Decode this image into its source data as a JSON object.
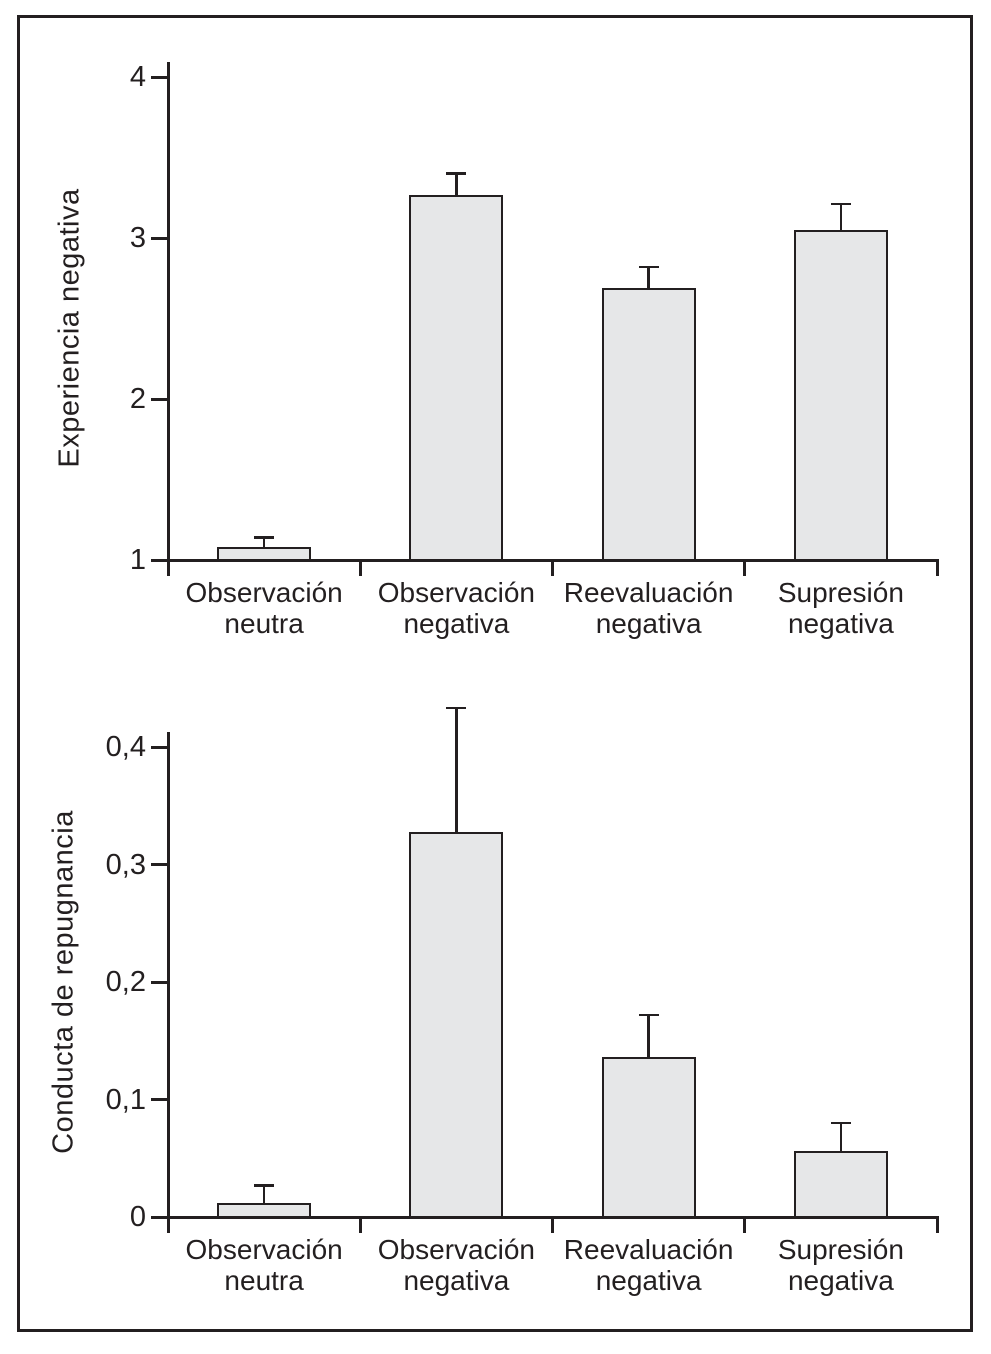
{
  "figure": {
    "background": "#ffffff",
    "frame_color": "#231f20"
  },
  "chart_data": [
    {
      "type": "bar",
      "title": "",
      "xlabel": "",
      "ylabel": "Experiencia negativa",
      "categories": [
        [
          "Observación",
          "neutra"
        ],
        [
          "Observación",
          "negativa"
        ],
        [
          "Reevaluación",
          "negativa"
        ],
        [
          "Supresión",
          "negativa"
        ]
      ],
      "values": [
        1.08,
        3.27,
        2.69,
        3.05
      ],
      "errors": [
        0.06,
        0.13,
        0.13,
        0.16
      ],
      "ylim": [
        1,
        4
      ],
      "yticks": [
        {
          "value": 1,
          "label": "1"
        },
        {
          "value": 2,
          "label": "2"
        },
        {
          "value": 3,
          "label": "3"
        },
        {
          "value": 4,
          "label": "4"
        }
      ],
      "grid": false,
      "legend": null,
      "bar_color": "#e6e7e8",
      "line_color": "#231f20"
    },
    {
      "type": "bar",
      "title": "",
      "xlabel": "",
      "ylabel": "Conducta de repugnancia",
      "categories": [
        [
          "Observación",
          "neutra"
        ],
        [
          "Observación",
          "negativa"
        ],
        [
          "Reevaluación",
          "negativa"
        ],
        [
          "Supresión",
          "negativa"
        ]
      ],
      "values": [
        0.012,
        0.328,
        0.136,
        0.056
      ],
      "errors": [
        0.015,
        0.105,
        0.036,
        0.024
      ],
      "ylim": [
        0,
        0.4
      ],
      "yticks": [
        {
          "value": 0,
          "label": "0"
        },
        {
          "value": 0.1,
          "label": "0,1"
        },
        {
          "value": 0.2,
          "label": "0,2"
        },
        {
          "value": 0.3,
          "label": "0,3"
        },
        {
          "value": 0.4,
          "label": "0,4"
        }
      ],
      "grid": false,
      "legend": null,
      "bar_color": "#e6e7e8",
      "line_color": "#231f20"
    }
  ]
}
